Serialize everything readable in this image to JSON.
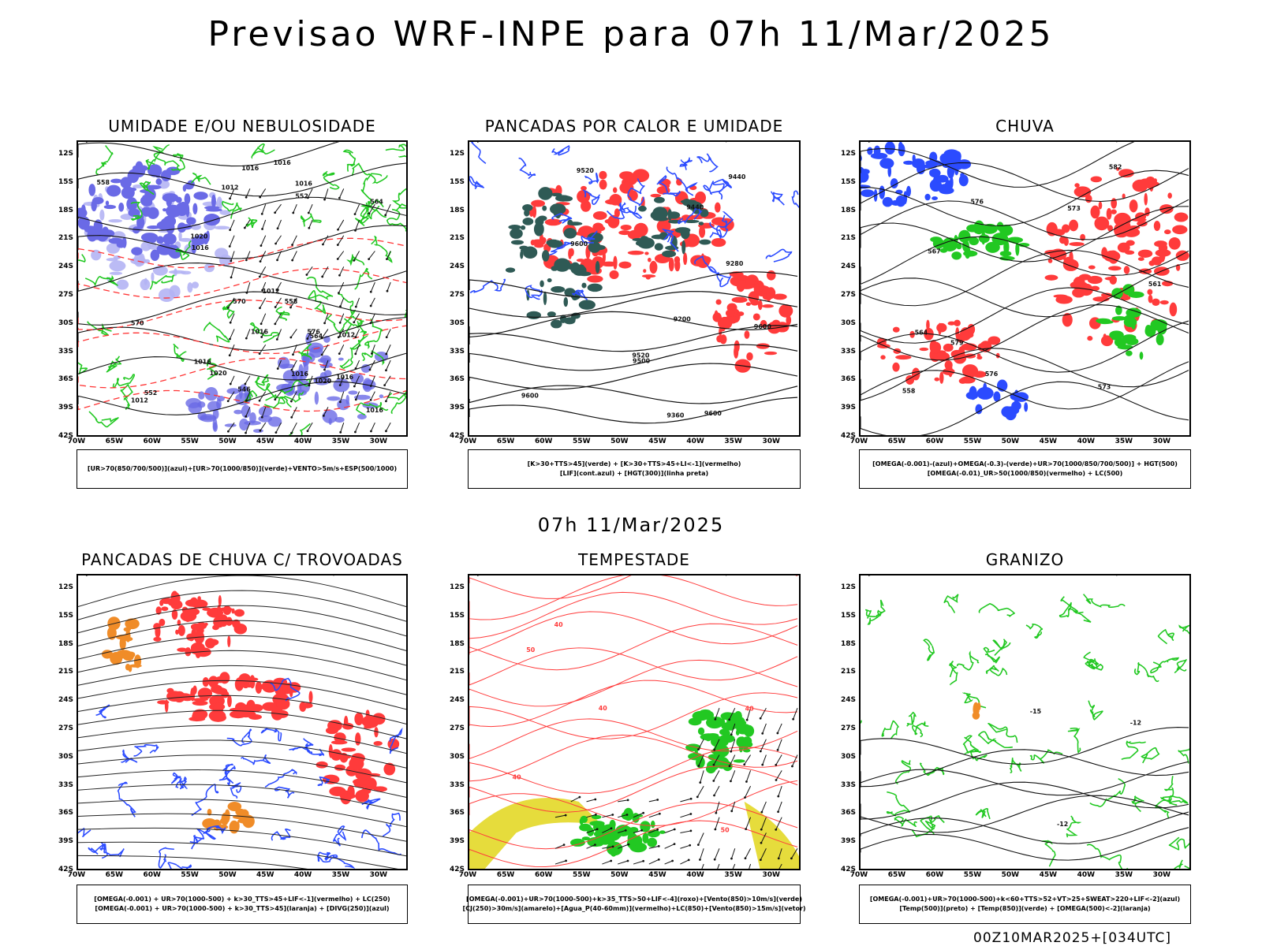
{
  "title": "Previsao WRF-INPE  para 07h 11/Mar/2025",
  "mid_title": "07h 11/Mar/2025",
  "footer": "00Z10MAR2025+[034UTC]",
  "lat_labels": [
    "12S",
    "15S",
    "18S",
    "21S",
    "24S",
    "27S",
    "30S",
    "33S",
    "36S",
    "39S",
    "42S"
  ],
  "lon_labels": [
    "70W",
    "65W",
    "60W",
    "55W",
    "50W",
    "45W",
    "40W",
    "35W",
    "30W"
  ],
  "colors": {
    "humidity_blue": "#6a6ae6",
    "humidity_light": "#b4b4f4",
    "green": "#22c822",
    "red": "#ff3b3b",
    "dark_teal": "#2f5a55",
    "blue": "#2b4bff",
    "orange": "#f08c28",
    "yellow": "#e6dc3c"
  },
  "panels": [
    {
      "id": "umidade",
      "title": "UMIDADE E/OU NEBULOSIDADE",
      "legend": [
        "[UR>70(850/700/500)](azul)+[UR>70(1000/850)](verde)+VENTO>5m/s+ESP(500/1000)"
      ],
      "contour_labels": [
        "1012",
        "1012",
        "1012",
        "1016",
        "1012",
        "1016",
        "1016",
        "1016",
        "1020",
        "1016",
        "1016",
        "1016",
        "1020",
        "1016",
        "1016",
        "1020",
        "576",
        "570",
        "570",
        "564",
        "558",
        "552",
        "546",
        "558",
        "564",
        "552"
      ]
    },
    {
      "id": "pancadas_calor",
      "title": "PANCADAS POR CALOR E UMIDADE",
      "legend": [
        "[K>30+TTS>45](verde) + [K>30+TTS>45+LI<-1](vermelho)",
        "[LIF](cont.azul) + [HGT(300)](linha preta)"
      ],
      "contour_labels": [
        "9600",
        "9600",
        "9500",
        "9600",
        "9520",
        "9600",
        "9520",
        "9440",
        "9360",
        "9280",
        "9200",
        "9440"
      ]
    },
    {
      "id": "chuva",
      "title": "CHUVA",
      "legend": [
        "[OMEGA(-0.001)-(azul)+OMEGA(-0.3)-(verde)+UR>70(1000/850/700/500)] + HGT(500)",
        "[OMEGA(-0.01)_UR>50(1000/850)(vermelho) + LC(500)"
      ],
      "contour_labels": [
        "582",
        "579",
        "576",
        "573",
        "567",
        "564",
        "561",
        "558",
        "576",
        "573"
      ]
    },
    {
      "id": "trovoadas",
      "title": "PANCADAS DE CHUVA C/ TROVOADAS",
      "legend": [
        "[OMEGA(-0.001) + UR>70(1000-500) + k>30_TTS>45+LIF<-1](vermelho) + LC(250)",
        "[OMEGA(-0.001) + UR>70(1000-500) + k>30_TTS>45](laranja) + [DIVG(250)](azul)"
      ],
      "contour_labels": []
    },
    {
      "id": "tempestade",
      "title": "TEMPESTADE",
      "legend": [
        "[OMEGA(-0.001)+UR>70(1000-500)+k>35_TTS>50+LIF<-4](roxo)+[Vento(850)>10m/s](verde)",
        "[CJ(250)>30m/s](amarelo)+[Agua_P(40-60mm)](vermelho)+LC(850)+[Vento(850)>15m/s](vetor)"
      ],
      "contour_labels": [
        "40",
        "40",
        "40",
        "50",
        "40",
        "50"
      ]
    },
    {
      "id": "granizo",
      "title": "GRANIZO",
      "legend": [
        "[OMEGA(-0.001)+UR>70(1000-500)+k<60+TTS>52+VT>25+SWEAT>220+LIF<-2](azul)",
        "[Temp(500)](preto) + [Temp(850)](verde) + [OMEGA(500)<-2](laranja)"
      ],
      "contour_labels": [
        "-12",
        "-12",
        "-15"
      ]
    }
  ]
}
